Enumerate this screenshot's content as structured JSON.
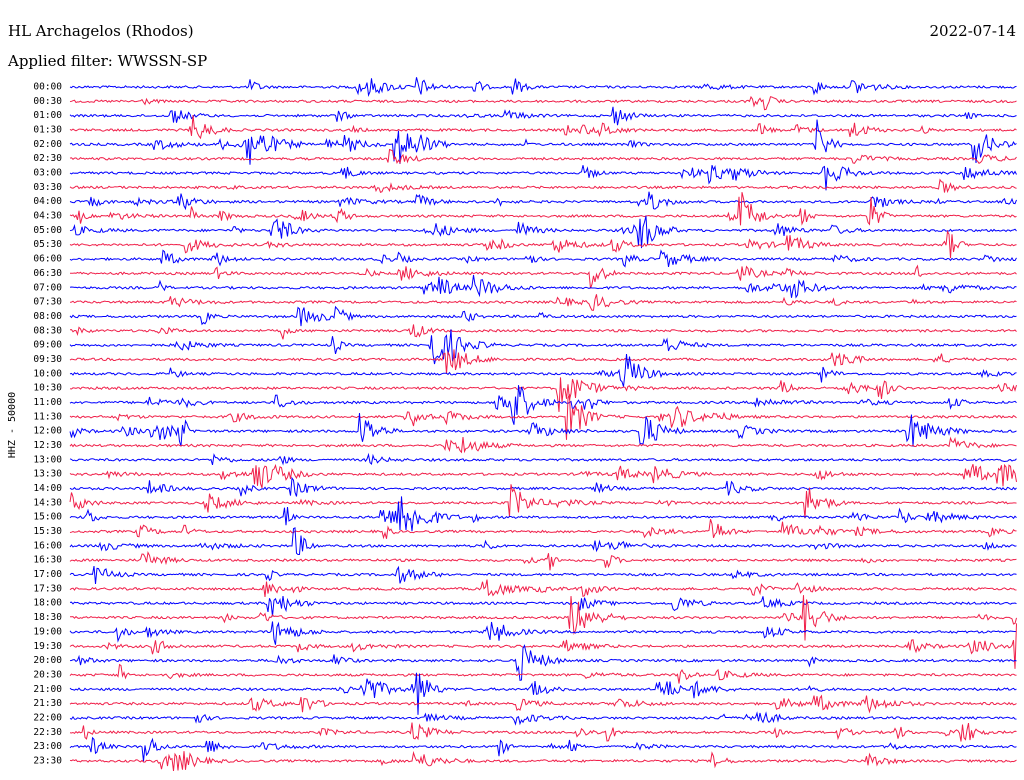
{
  "header": {
    "station": "HL Archagelos (Rhodos)",
    "date": "2022-07-14",
    "filter": "Applied filter: WWSSN-SP"
  },
  "axis": {
    "label": "HHZ - 50000",
    "rows": [
      "00:00",
      "00:30",
      "01:00",
      "01:30",
      "02:00",
      "02:30",
      "03:00",
      "03:30",
      "04:00",
      "04:30",
      "05:00",
      "05:30",
      "06:00",
      "06:30",
      "07:00",
      "07:30",
      "08:00",
      "08:30",
      "09:00",
      "09:30",
      "10:00",
      "10:30",
      "11:00",
      "11:30",
      "12:00",
      "12:30",
      "13:00",
      "13:30",
      "14:00",
      "14:30",
      "15:00",
      "15:30",
      "16:00",
      "16:30",
      "17:00",
      "17:30",
      "18:00",
      "18:30",
      "19:00",
      "19:30",
      "20:00",
      "20:30",
      "21:00",
      "21:30",
      "22:00",
      "22:30",
      "23:00",
      "23:30"
    ]
  }
}
